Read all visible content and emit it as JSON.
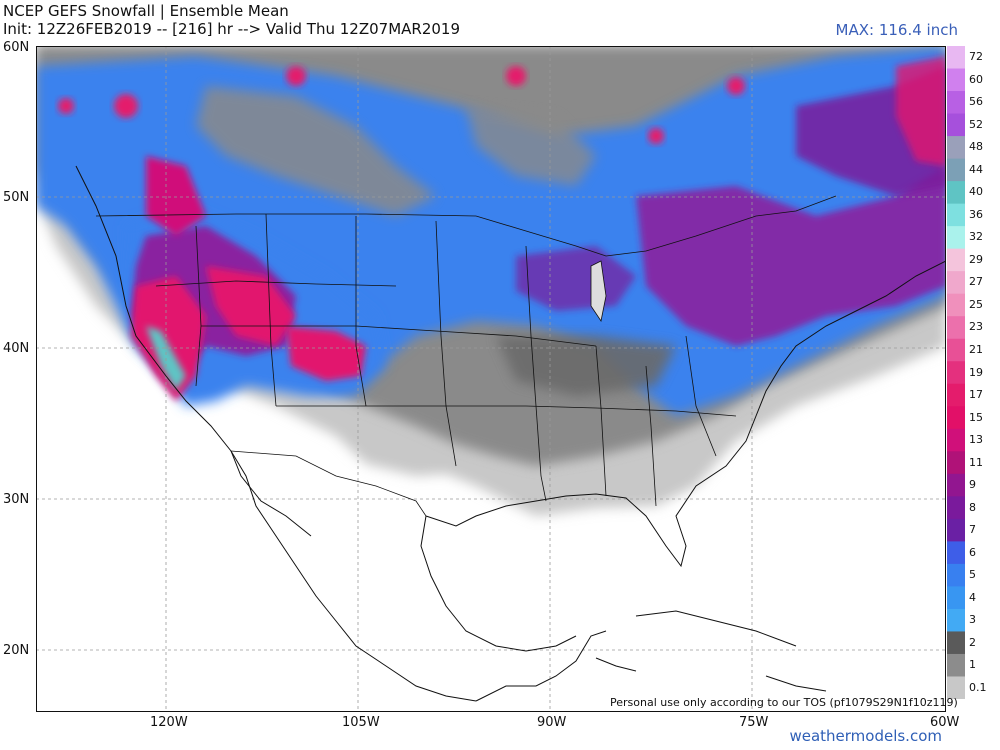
{
  "header": {
    "title_line1": "NCEP GEFS Snowfall | Ensemble Mean",
    "title_line2": "Init: 12Z26FEB2019 -- [216] hr --> Valid Thu 12Z07MAR2019",
    "max_label": "MAX: 116.4 inch"
  },
  "axes": {
    "lat_labels": [
      "60N",
      "50N",
      "40N",
      "30N",
      "20N"
    ],
    "lat_values": [
      60,
      50,
      40,
      30,
      20
    ],
    "lon_labels": [
      "120W",
      "105W",
      "90W",
      "75W",
      "60W"
    ],
    "lon_values": [
      -120,
      -105,
      -90,
      -75,
      -60
    ]
  },
  "colorbar": {
    "labels": [
      "72",
      "60",
      "56",
      "52",
      "48",
      "44",
      "40",
      "36",
      "32",
      "29",
      "27",
      "25",
      "23",
      "21",
      "19",
      "17",
      "15",
      "13",
      "11",
      "9",
      "8",
      "7",
      "6",
      "5",
      "4",
      "3",
      "2",
      "1",
      "0.1"
    ],
    "colors": [
      "#e8b8f2",
      "#d080ee",
      "#b860e4",
      "#a650dc",
      "#9aa0ba",
      "#7ca0b6",
      "#5fc4c4",
      "#7ee0e0",
      "#aaf2ec",
      "#f4c4dc",
      "#f0a8cc",
      "#f090bc",
      "#ec70ac",
      "#e85096",
      "#e4307e",
      "#e41c6c",
      "#e21068",
      "#d0107a",
      "#b01278",
      "#921690",
      "#7a1a9c",
      "#6a20a4",
      "#3e5ee8",
      "#3880f0",
      "#3896f2",
      "#42aaf4",
      "#5a5a5a",
      "#8c8c8c",
      "#c8c8c8"
    ]
  },
  "footer": {
    "tos_notice": "Personal use only according to our TOS (pf1079S29N1f10z119)",
    "source": "weathermodels.com"
  },
  "map_data": {
    "extent": {
      "lon_min": -126.5,
      "lon_max": -60,
      "lat_min": 16.8,
      "lat_max": 60
    },
    "max_inches": 116.4
  }
}
